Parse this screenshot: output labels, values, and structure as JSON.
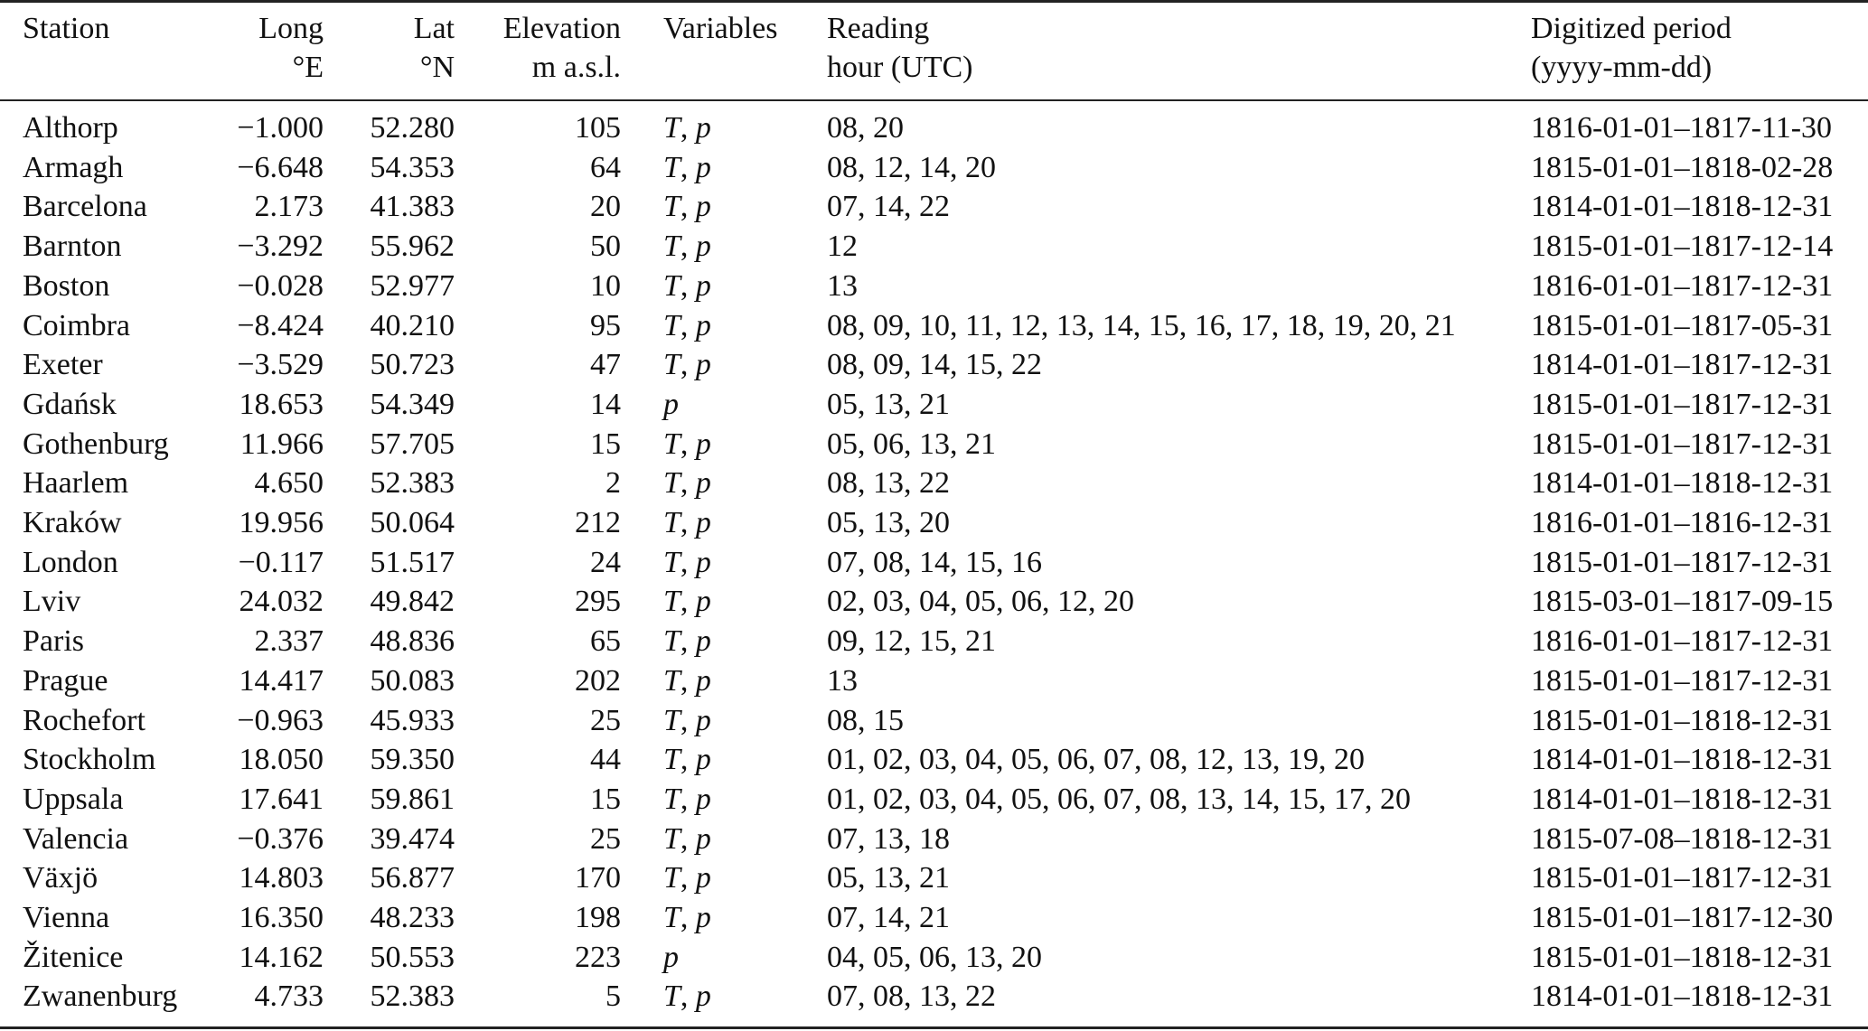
{
  "header": {
    "station": "Station",
    "long": [
      "Long",
      "°E"
    ],
    "lat": [
      "Lat",
      "°N"
    ],
    "elevation": [
      "Elevation",
      "m a.s.l."
    ],
    "variables": "Variables",
    "reading": [
      "Reading",
      "hour (UTC)"
    ],
    "period": [
      "Digitized period",
      "(yyyy-mm-dd)"
    ]
  },
  "rows": [
    {
      "station": "Althorp",
      "long": "−1.000",
      "lat": "52.280",
      "elevation": "105",
      "variables": [
        "T",
        "p"
      ],
      "reading": "08, 20",
      "period": "1816-01-01–1817-11-30"
    },
    {
      "station": "Armagh",
      "long": "−6.648",
      "lat": "54.353",
      "elevation": "64",
      "variables": [
        "T",
        "p"
      ],
      "reading": "08, 12, 14, 20",
      "period": "1815-01-01–1818-02-28"
    },
    {
      "station": "Barcelona",
      "long": "2.173",
      "lat": "41.383",
      "elevation": "20",
      "variables": [
        "T",
        "p"
      ],
      "reading": "07, 14, 22",
      "period": "1814-01-01–1818-12-31"
    },
    {
      "station": "Barnton",
      "long": "−3.292",
      "lat": "55.962",
      "elevation": "50",
      "variables": [
        "T",
        "p"
      ],
      "reading": "12",
      "period": "1815-01-01–1817-12-14"
    },
    {
      "station": "Boston",
      "long": "−0.028",
      "lat": "52.977",
      "elevation": "10",
      "variables": [
        "T",
        "p"
      ],
      "reading": "13",
      "period": "1816-01-01–1817-12-31"
    },
    {
      "station": "Coimbra",
      "long": "−8.424",
      "lat": "40.210",
      "elevation": "95",
      "variables": [
        "T",
        "p"
      ],
      "reading": "08, 09, 10, 11, 12, 13, 14, 15, 16, 17, 18, 19, 20, 21",
      "period": "1815-01-01–1817-05-31"
    },
    {
      "station": "Exeter",
      "long": "−3.529",
      "lat": "50.723",
      "elevation": "47",
      "variables": [
        "T",
        "p"
      ],
      "reading": "08, 09, 14, 15, 22",
      "period": "1814-01-01–1817-12-31"
    },
    {
      "station": "Gdańsk",
      "long": "18.653",
      "lat": "54.349",
      "elevation": "14",
      "variables": [
        "p"
      ],
      "reading": "05, 13, 21",
      "period": "1815-01-01–1817-12-31"
    },
    {
      "station": "Gothenburg",
      "long": "11.966",
      "lat": "57.705",
      "elevation": "15",
      "variables": [
        "T",
        "p"
      ],
      "reading": "05, 06, 13, 21",
      "period": "1815-01-01–1817-12-31"
    },
    {
      "station": "Haarlem",
      "long": "4.650",
      "lat": "52.383",
      "elevation": "2",
      "variables": [
        "T",
        "p"
      ],
      "reading": "08, 13, 22",
      "period": "1814-01-01–1818-12-31"
    },
    {
      "station": "Kraków",
      "long": "19.956",
      "lat": "50.064",
      "elevation": "212",
      "variables": [
        "T",
        "p"
      ],
      "reading": "05, 13, 20",
      "period": "1816-01-01–1816-12-31"
    },
    {
      "station": "London",
      "long": "−0.117",
      "lat": "51.517",
      "elevation": "24",
      "variables": [
        "T",
        "p"
      ],
      "reading": "07, 08, 14, 15, 16",
      "period": "1815-01-01–1817-12-31"
    },
    {
      "station": "Lviv",
      "long": "24.032",
      "lat": "49.842",
      "elevation": "295",
      "variables": [
        "T",
        "p"
      ],
      "reading": "02, 03, 04, 05, 06, 12, 20",
      "period": "1815-03-01–1817-09-15"
    },
    {
      "station": "Paris",
      "long": "2.337",
      "lat": "48.836",
      "elevation": "65",
      "variables": [
        "T",
        "p"
      ],
      "reading": "09, 12, 15, 21",
      "period": "1816-01-01–1817-12-31"
    },
    {
      "station": "Prague",
      "long": "14.417",
      "lat": "50.083",
      "elevation": "202",
      "variables": [
        "T",
        "p"
      ],
      "reading": "13",
      "period": "1815-01-01–1817-12-31"
    },
    {
      "station": "Rochefort",
      "long": "−0.963",
      "lat": "45.933",
      "elevation": "25",
      "variables": [
        "T",
        "p"
      ],
      "reading": "08, 15",
      "period": "1815-01-01–1818-12-31"
    },
    {
      "station": "Stockholm",
      "long": "18.050",
      "lat": "59.350",
      "elevation": "44",
      "variables": [
        "T",
        "p"
      ],
      "reading": "01, 02, 03, 04, 05, 06, 07, 08, 12, 13, 19, 20",
      "period": "1814-01-01–1818-12-31"
    },
    {
      "station": "Uppsala",
      "long": "17.641",
      "lat": "59.861",
      "elevation": "15",
      "variables": [
        "T",
        "p"
      ],
      "reading": "01, 02, 03, 04, 05, 06, 07, 08, 13, 14, 15, 17, 20",
      "period": "1814-01-01–1818-12-31"
    },
    {
      "station": "Valencia",
      "long": "−0.376",
      "lat": "39.474",
      "elevation": "25",
      "variables": [
        "T",
        "p"
      ],
      "reading": "07, 13, 18",
      "period": "1815-07-08–1818-12-31"
    },
    {
      "station": "Växjö",
      "long": "14.803",
      "lat": "56.877",
      "elevation": "170",
      "variables": [
        "T",
        "p"
      ],
      "reading": "05, 13, 21",
      "period": "1815-01-01–1817-12-31"
    },
    {
      "station": "Vienna",
      "long": "16.350",
      "lat": "48.233",
      "elevation": "198",
      "variables": [
        "T",
        "p"
      ],
      "reading": "07, 14, 21",
      "period": "1815-01-01–1817-12-30"
    },
    {
      "station": "Žitenice",
      "long": "14.162",
      "lat": "50.553",
      "elevation": "223",
      "variables": [
        "p"
      ],
      "reading": "04, 05, 06, 13, 20",
      "period": "1815-01-01–1818-12-31"
    },
    {
      "station": "Zwanenburg",
      "long": "4.733",
      "lat": "52.383",
      "elevation": "5",
      "variables": [
        "T",
        "p"
      ],
      "reading": "07, 08, 13, 22",
      "period": "1814-01-01–1818-12-31"
    }
  ]
}
